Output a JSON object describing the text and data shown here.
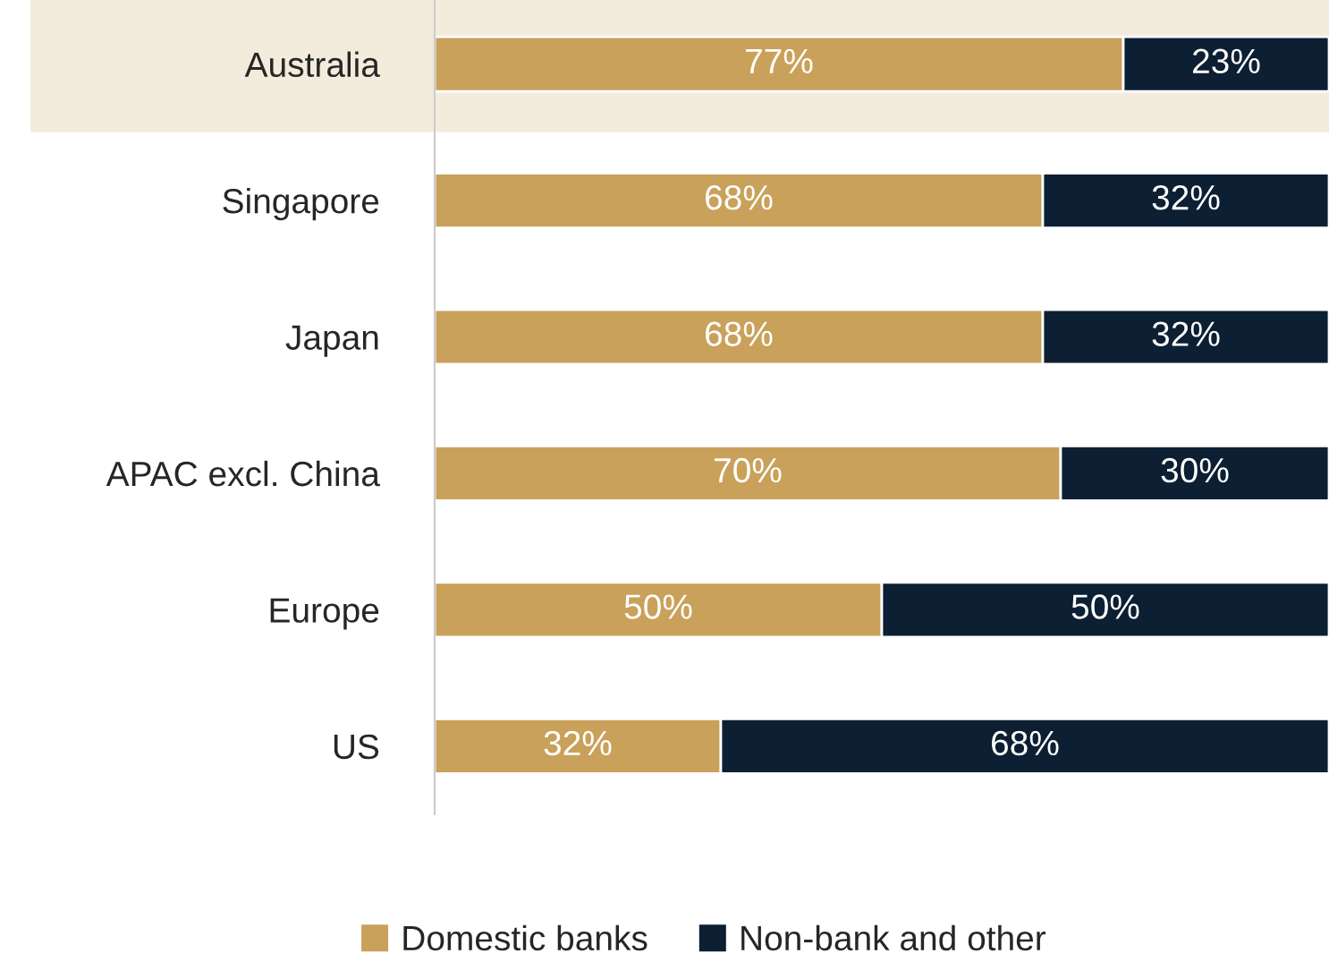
{
  "chart_data": {
    "type": "bar",
    "orientation": "horizontal",
    "stacked": true,
    "tick_labels": "y",
    "legend": "bottom",
    "categories": [
      "Australia",
      "Singapore",
      "Japan",
      "APAC excl. China",
      "Europe",
      "US"
    ],
    "series": [
      {
        "name": "Domestic banks",
        "color": "#c9a15a",
        "values": [
          77,
          68,
          68,
          70,
          50,
          32
        ],
        "value_labels": [
          "77%",
          "68%",
          "68%",
          "70%",
          "50%",
          "32%"
        ]
      },
      {
        "name": "Non-bank and other",
        "color": "#0c1f33",
        "values": [
          23,
          32,
          32,
          30,
          50,
          68
        ],
        "value_labels": [
          "23%",
          "32%",
          "32%",
          "30%",
          "50%",
          "68%"
        ]
      }
    ],
    "bands": [
      {
        "axis": "y",
        "from": "Australia",
        "to": "Australia",
        "color": "#f3ebdc"
      }
    ]
  }
}
